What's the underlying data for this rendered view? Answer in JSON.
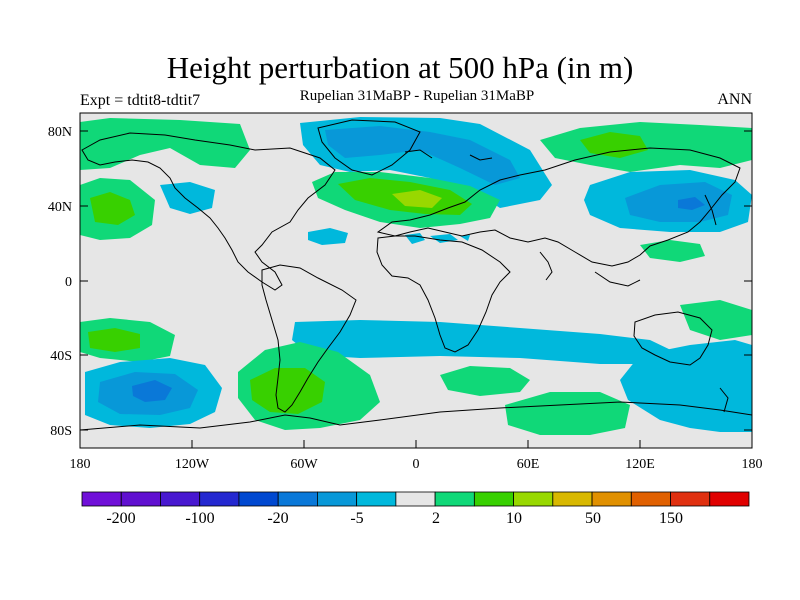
{
  "header": {
    "title": "Height perturbation at 500 hPa (in m)",
    "expt": "Expt = tdtit8-tdtit7",
    "subtitle": "Rupelian  31MaBP - Rupelian  31MaBP",
    "season": "ANN"
  },
  "axes": {
    "lat_labels": [
      "80N",
      "40N",
      "0",
      "40S",
      "80S"
    ],
    "lon_labels": [
      "180",
      "120W",
      "60W",
      "0",
      "60E",
      "120E",
      "180"
    ]
  },
  "colorbar": {
    "colors": [
      "#7010d8",
      "#6010d0",
      "#4818d0",
      "#2428d0",
      "#0048d0",
      "#0a78d8",
      "#0898d8",
      "#00b8dc",
      "#e6e6e6",
      "#10d878",
      "#38d000",
      "#98d800",
      "#d8b800",
      "#e09000",
      "#e06000",
      "#e03010",
      "#e00000"
    ],
    "labels": [
      "-200",
      "-100",
      "-20",
      "-5",
      "2",
      "10",
      "50",
      "150"
    ]
  },
  "palette": {
    "neutral": "#e6e6e6",
    "pos1": "#10d878",
    "pos2": "#38d000",
    "pos3": "#98d800",
    "neg1": "#00b8dc",
    "neg2": "#0898d8",
    "neg3": "#0a78d8"
  }
}
